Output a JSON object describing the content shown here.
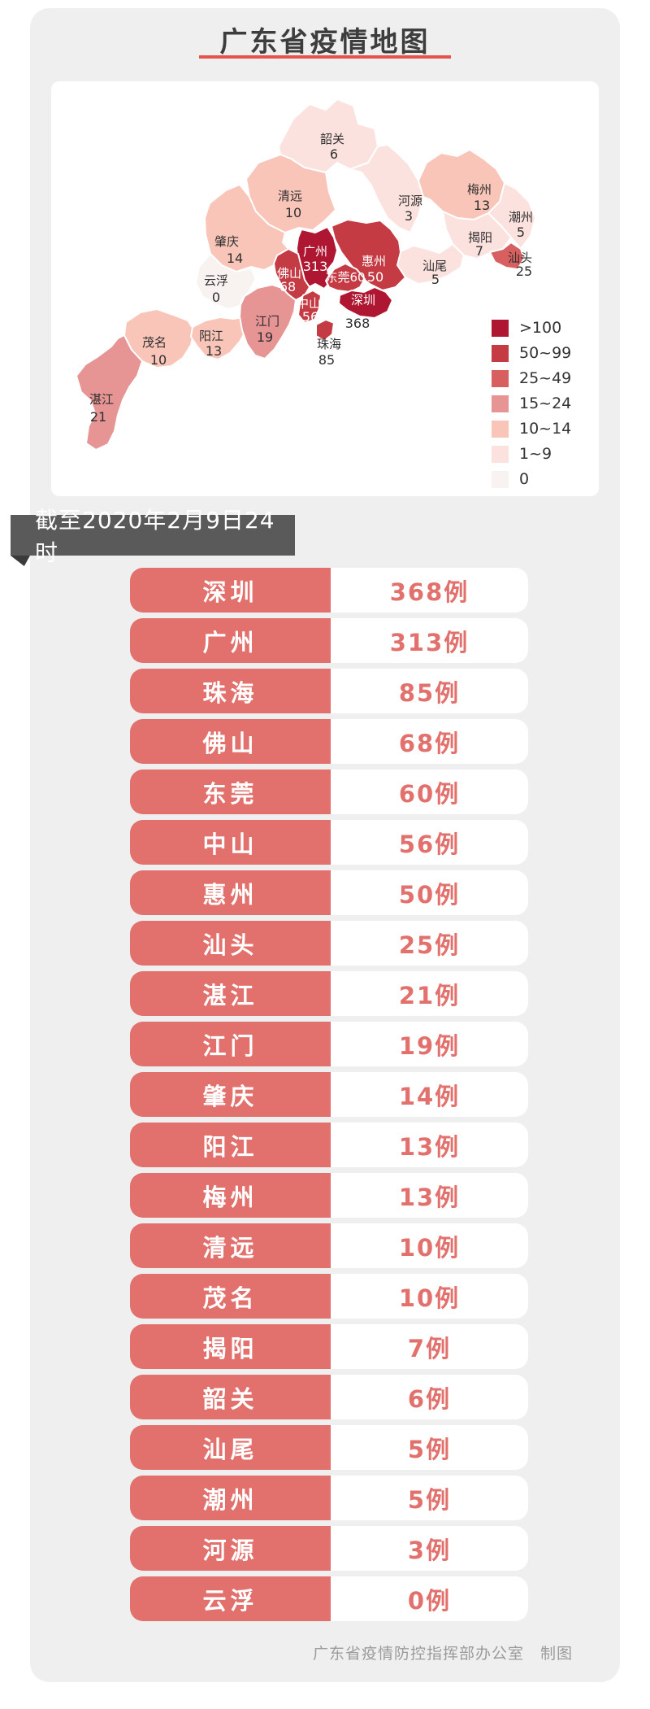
{
  "header": {
    "title": "广东省疫情地图"
  },
  "map": {
    "legend": {
      "items": [
        {
          "label": ">100",
          "color": "#ae1631"
        },
        {
          "label": "50~99",
          "color": "#c43b44"
        },
        {
          "label": "25~49",
          "color": "#d75f5f"
        },
        {
          "label": "15~24",
          "color": "#e69494"
        },
        {
          "label": "10~14",
          "color": "#f8c5b8"
        },
        {
          "label": "1~9",
          "color": "#fce2df"
        },
        {
          "label": "0",
          "color": "#f8f2f0"
        }
      ]
    },
    "cities": [
      {
        "name": "韶关",
        "count": "6"
      },
      {
        "name": "清远",
        "count": "10"
      },
      {
        "name": "河源",
        "count": "3"
      },
      {
        "name": "梅州",
        "count": "13"
      },
      {
        "name": "潮州",
        "count": "5"
      },
      {
        "name": "揭阳",
        "count": "7"
      },
      {
        "name": "汕头",
        "count": "25"
      },
      {
        "name": "汕尾",
        "count": "5"
      },
      {
        "name": "惠州",
        "count": "50"
      },
      {
        "name": "广州",
        "count": "313"
      },
      {
        "name": "东莞",
        "count": "60"
      },
      {
        "name": "佛山",
        "count": "68"
      },
      {
        "name": "深圳",
        "count": "368"
      },
      {
        "name": "中山",
        "count": "56"
      },
      {
        "name": "珠海",
        "count": "85"
      },
      {
        "name": "江门",
        "count": "19"
      },
      {
        "name": "肇庆",
        "count": "14"
      },
      {
        "name": "云浮",
        "count": "0"
      },
      {
        "name": "阳江",
        "count": "13"
      },
      {
        "name": "茂名",
        "count": "10"
      },
      {
        "name": "湛江",
        "count": "21"
      }
    ]
  },
  "banner": {
    "date_label": "截至2020年2月9日24时"
  },
  "table": {
    "rows": [
      {
        "city": "深圳",
        "cases": "368例"
      },
      {
        "city": "广州",
        "cases": "313例"
      },
      {
        "city": "珠海",
        "cases": "85例"
      },
      {
        "city": "佛山",
        "cases": "68例"
      },
      {
        "city": "东莞",
        "cases": "60例"
      },
      {
        "city": "中山",
        "cases": "56例"
      },
      {
        "city": "惠州",
        "cases": "50例"
      },
      {
        "city": "汕头",
        "cases": "25例"
      },
      {
        "city": "湛江",
        "cases": "21例"
      },
      {
        "city": "江门",
        "cases": "19例"
      },
      {
        "city": "肇庆",
        "cases": "14例"
      },
      {
        "city": "阳江",
        "cases": "13例"
      },
      {
        "city": "梅州",
        "cases": "13例"
      },
      {
        "city": "清远",
        "cases": "10例"
      },
      {
        "city": "茂名",
        "cases": "10例"
      },
      {
        "city": "揭阳",
        "cases": "7例"
      },
      {
        "city": "韶关",
        "cases": "6例"
      },
      {
        "city": "汕尾",
        "cases": "5例"
      },
      {
        "city": "潮州",
        "cases": "5例"
      },
      {
        "city": "河源",
        "cases": "3例"
      },
      {
        "city": "云浮",
        "cases": "0例"
      }
    ]
  },
  "footer": {
    "credit": "广东省疫情防控指挥部办公室　制图"
  }
}
